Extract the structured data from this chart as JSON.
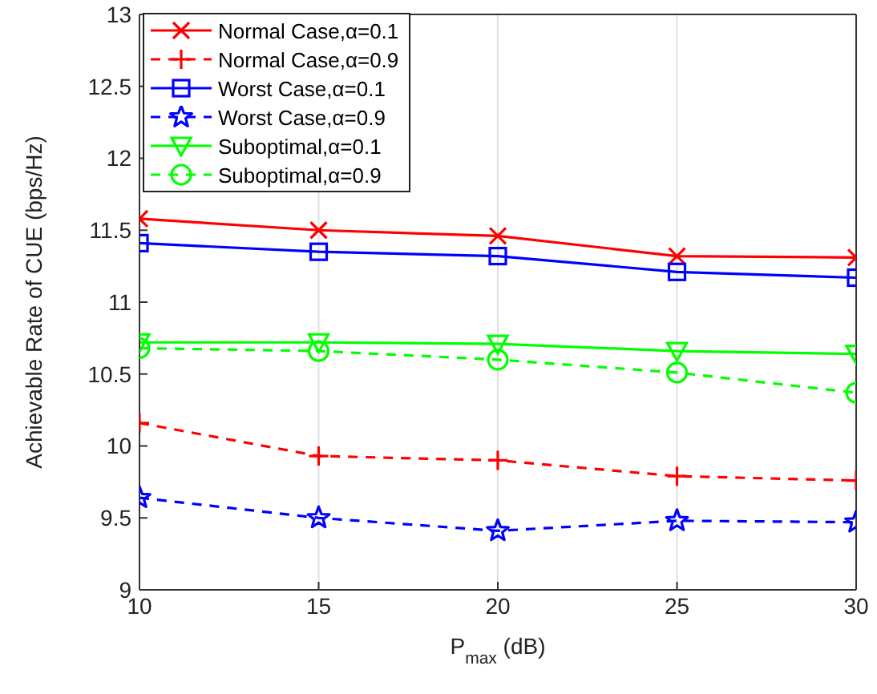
{
  "chart_data": {
    "type": "line",
    "xlabel": "P$_{max}$ (dB)",
    "ylabel": "Achievable Rate of CUE (bps/Hz)",
    "x": [
      10,
      15,
      20,
      25,
      30
    ],
    "xlim": [
      10,
      30
    ],
    "xticks": [
      10,
      15,
      20,
      25,
      30
    ],
    "ylim": [
      9,
      13
    ],
    "yticks": [
      9,
      9.5,
      10,
      10.5,
      11,
      11.5,
      12,
      12.5,
      13
    ],
    "grid": true,
    "legend": "top left",
    "series": [
      {
        "name": "Normal Case,α=0.1",
        "color": "#ff0000",
        "marker": "cross",
        "line_style": "solid",
        "values": [
          11.58,
          11.5,
          11.46,
          11.32,
          11.31
        ]
      },
      {
        "name": "Normal Case,α=0.9",
        "color": "#ff0000",
        "marker": "plus",
        "line_style": "dashed",
        "values": [
          10.16,
          9.93,
          9.9,
          9.79,
          9.76
        ]
      },
      {
        "name": "Worst Case,α=0.1",
        "color": "#0000ff",
        "marker": "square",
        "line_style": "solid",
        "values": [
          11.41,
          11.35,
          11.32,
          11.21,
          11.17
        ]
      },
      {
        "name": "Worst Case,α=0.9",
        "color": "#0000ff",
        "marker": "star",
        "line_style": "dashed",
        "values": [
          9.64,
          9.5,
          9.41,
          9.48,
          9.47
        ]
      },
      {
        "name": "Suboptimal,α=0.1",
        "color": "#00ff00",
        "marker": "triangle",
        "line_style": "solid",
        "values": [
          10.72,
          10.72,
          10.71,
          10.66,
          10.64
        ]
      },
      {
        "name": "Suboptimal,α=0.9",
        "color": "#00ff00",
        "marker": "circle",
        "line_style": "dashed",
        "values": [
          10.68,
          10.66,
          10.6,
          10.51,
          10.37
        ]
      }
    ]
  }
}
